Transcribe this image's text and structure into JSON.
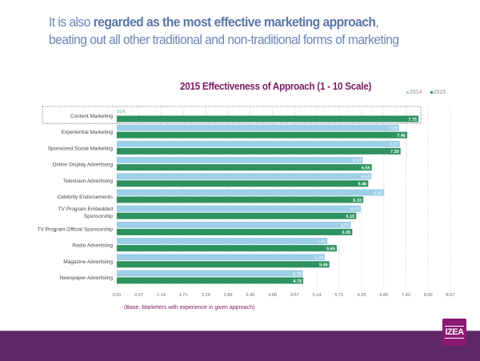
{
  "headline": {
    "prefix": "It is also ",
    "bold": "regarded as the most effective marketing approach",
    "suffix": ", beating out all other traditional and non-traditional forms of marketing"
  },
  "footnote": "(Base: Marketers with experience in given approach)",
  "logo": {
    "text": "IZEA"
  },
  "colors": {
    "series2014": "#9dcfe6",
    "series2015": "#2e9260",
    "title": "#7a1a62",
    "footer": "#5e2868"
  },
  "chart_data": {
    "type": "bar",
    "orientation": "horizontal",
    "title": "2015 Effectiveness of Approach (1 - 10 Scale)",
    "xlabel": "",
    "ylabel": "",
    "xlim": [
      0,
      8.57
    ],
    "xticks": [
      "0.00",
      "0.57",
      "1.14",
      "1.71",
      "2.29",
      "2.86",
      "3.43",
      "4.00",
      "4.57",
      "5.14",
      "5.71",
      "6.29",
      "6.86",
      "7.43",
      "8.00",
      "8.57"
    ],
    "grid": true,
    "legend": "top-right",
    "highlighted_category": "Content Marketing",
    "na_label": "N/A",
    "categories": [
      "Content Marketing",
      "Experiential Marketing",
      "Sponsored Social Marketing",
      "Online Display Advertising",
      "Television Advertising",
      "Celebrity Endorsements",
      "TV Program Embedded Sponsorship",
      "TV Program Official Sponsorship",
      "Radio Advertising",
      "Magazine Advertising",
      "Newspaper Advertising"
    ],
    "series": [
      {
        "name": "2014",
        "values": [
          null,
          7.25,
          7.27,
          6.32,
          6.54,
          6.87,
          6.27,
          6.01,
          5.41,
          5.34,
          4.78
        ]
      },
      {
        "name": "2015",
        "values": [
          7.75,
          7.46,
          7.29,
          6.55,
          6.46,
          6.33,
          6.15,
          6.05,
          5.65,
          5.46,
          4.79
        ]
      }
    ]
  }
}
